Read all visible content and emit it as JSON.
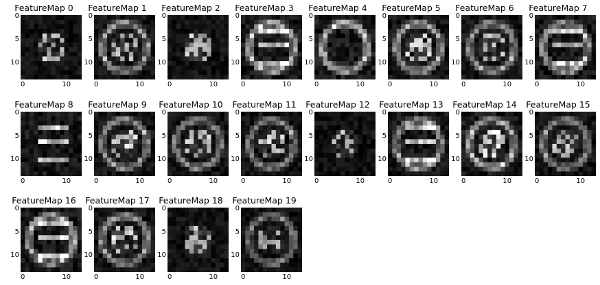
{
  "chart_data": {
    "type": "heatmap",
    "colormap": "gray",
    "grid_size": [
      14,
      14
    ],
    "ytick_labels": [
      "0",
      "5",
      "10"
    ],
    "xtick_labels": [
      "0",
      "10"
    ],
    "panels": [
      {
        "title": "FeatureMap 0",
        "pattern": "center",
        "level": 0.55
      },
      {
        "title": "FeatureMap 1",
        "pattern": "ring-center",
        "level": 0.6
      },
      {
        "title": "FeatureMap 2",
        "pattern": "center",
        "level": 0.55
      },
      {
        "title": "FeatureMap 3",
        "pattern": "ring-bars",
        "level": 0.8
      },
      {
        "title": "FeatureMap 4",
        "pattern": "ring",
        "level": 0.85
      },
      {
        "title": "FeatureMap 5",
        "pattern": "ring-center",
        "level": 0.65
      },
      {
        "title": "FeatureMap 6",
        "pattern": "ring-center",
        "level": 0.6
      },
      {
        "title": "FeatureMap 7",
        "pattern": "ring-bars",
        "level": 0.7
      },
      {
        "title": "FeatureMap 8",
        "pattern": "bars",
        "level": 0.75
      },
      {
        "title": "FeatureMap 9",
        "pattern": "ring-center",
        "level": 0.6
      },
      {
        "title": "FeatureMap 10",
        "pattern": "ring-center",
        "level": 0.55
      },
      {
        "title": "FeatureMap 11",
        "pattern": "ring-center",
        "level": 0.55
      },
      {
        "title": "FeatureMap 12",
        "pattern": "center",
        "level": 0.5
      },
      {
        "title": "FeatureMap 13",
        "pattern": "ring-bars",
        "level": 0.7
      },
      {
        "title": "FeatureMap 14",
        "pattern": "ring-center",
        "level": 0.75
      },
      {
        "title": "FeatureMap 15",
        "pattern": "ring-center",
        "level": 0.55
      },
      {
        "title": "FeatureMap 16",
        "pattern": "ring-bars",
        "level": 0.75
      },
      {
        "title": "FeatureMap 17",
        "pattern": "ring-center",
        "level": 0.6
      },
      {
        "title": "FeatureMap 18",
        "pattern": "center",
        "level": 0.55
      },
      {
        "title": "FeatureMap 19",
        "pattern": "ring-center",
        "level": 0.5
      }
    ]
  }
}
